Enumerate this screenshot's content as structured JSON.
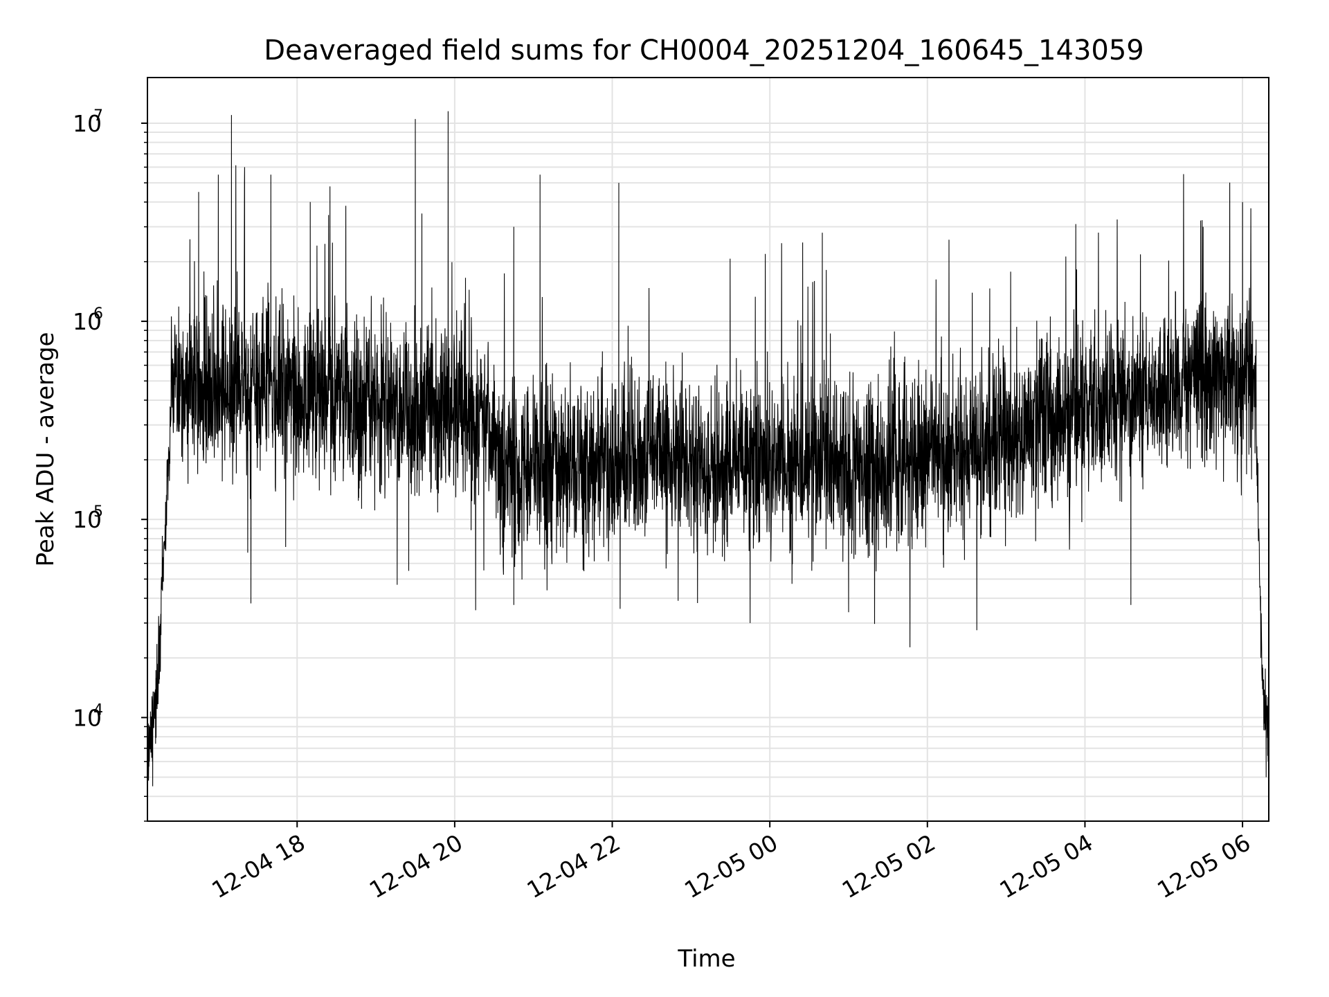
{
  "chart_data": {
    "type": "line",
    "title": "Deaveraged field sums for CH0004_20251204_160645_143059",
    "xlabel": "Time",
    "ylabel": "Peak ADU - average",
    "y_scale": "log",
    "ylim": [
      3000,
      17000000
    ],
    "xlim": [
      "2025-12-04 16:06",
      "2025-12-05 06:20"
    ],
    "x_ticks": [
      "12-04 18",
      "12-04 20",
      "12-04 22",
      "12-05 00",
      "12-05 02",
      "12-05 04",
      "12-05 06"
    ],
    "y_ticks": [
      {
        "base": "10",
        "exp": "4",
        "value": 10000
      },
      {
        "base": "10",
        "exp": "5",
        "value": 100000
      },
      {
        "base": "10",
        "exp": "6",
        "value": 1000000
      },
      {
        "base": "10",
        "exp": "7",
        "value": 10000000
      }
    ],
    "grid": true,
    "line_color": "#000000",
    "baseline_profile": [
      {
        "x": "2025-12-04 16:06",
        "y": 7000
      },
      {
        "x": "2025-12-04 16:13",
        "y": 12000
      },
      {
        "x": "2025-12-04 16:18",
        "y": 60000
      },
      {
        "x": "2025-12-04 16:22",
        "y": 200000
      },
      {
        "x": "2025-12-04 16:25",
        "y": 500000
      },
      {
        "x": "2025-12-04 17:00",
        "y": 480000
      },
      {
        "x": "2025-12-04 18:00",
        "y": 430000
      },
      {
        "x": "2025-12-04 19:00",
        "y": 390000
      },
      {
        "x": "2025-12-04 19:40",
        "y": 350000
      },
      {
        "x": "2025-12-04 20:25",
        "y": 330000
      },
      {
        "x": "2025-12-04 20:35",
        "y": 170000
      },
      {
        "x": "2025-12-04 21:30",
        "y": 185000
      },
      {
        "x": "2025-12-04 22:30",
        "y": 200000
      },
      {
        "x": "2025-12-04 23:30",
        "y": 180000
      },
      {
        "x": "2025-12-05 00:30",
        "y": 190000
      },
      {
        "x": "2025-12-05 01:30",
        "y": 200000
      },
      {
        "x": "2025-12-05 02:30",
        "y": 220000
      },
      {
        "x": "2025-12-05 03:30",
        "y": 300000
      },
      {
        "x": "2025-12-05 04:30",
        "y": 400000
      },
      {
        "x": "2025-12-05 05:30",
        "y": 500000
      },
      {
        "x": "2025-12-05 06:05",
        "y": 550000
      },
      {
        "x": "2025-12-05 06:10",
        "y": 400000
      },
      {
        "x": "2025-12-05 06:13",
        "y": 50000
      },
      {
        "x": "2025-12-05 06:16",
        "y": 12000
      },
      {
        "x": "2025-12-05 06:20",
        "y": 9000
      }
    ],
    "peaks": [
      {
        "x": "2025-12-04 16:45",
        "y": 4500000
      },
      {
        "x": "2025-12-04 17:00",
        "y": 5500000
      },
      {
        "x": "2025-12-04 17:10",
        "y": 11000000
      },
      {
        "x": "2025-12-04 17:20",
        "y": 6000000
      },
      {
        "x": "2025-12-04 17:40",
        "y": 5500000
      },
      {
        "x": "2025-12-04 18:10",
        "y": 4000000
      },
      {
        "x": "2025-12-04 18:25",
        "y": 4800000
      },
      {
        "x": "2025-12-04 19:30",
        "y": 10500000
      },
      {
        "x": "2025-12-04 19:35",
        "y": 3500000
      },
      {
        "x": "2025-12-04 19:55",
        "y": 11500000
      },
      {
        "x": "2025-12-04 20:45",
        "y": 3000000
      },
      {
        "x": "2025-12-04 21:05",
        "y": 5500000
      },
      {
        "x": "2025-12-04 22:05",
        "y": 5000000
      },
      {
        "x": "2025-12-05 00:25",
        "y": 2500000
      },
      {
        "x": "2025-12-05 00:40",
        "y": 2800000
      },
      {
        "x": "2025-12-05 05:30",
        "y": 3000000
      },
      {
        "x": "2025-12-05 06:00",
        "y": 4000000
      }
    ],
    "dips": [
      {
        "x": "2025-12-04 16:10",
        "y": 4500
      },
      {
        "x": "2025-12-04 19:25",
        "y": 55000
      },
      {
        "x": "2025-12-04 20:45",
        "y": 37000
      },
      {
        "x": "2025-12-04 23:45",
        "y": 30000
      },
      {
        "x": "2025-12-05 01:00",
        "y": 34000
      },
      {
        "x": "2025-12-05 04:35",
        "y": 37000
      },
      {
        "x": "2025-12-05 06:18",
        "y": 5000
      }
    ]
  }
}
